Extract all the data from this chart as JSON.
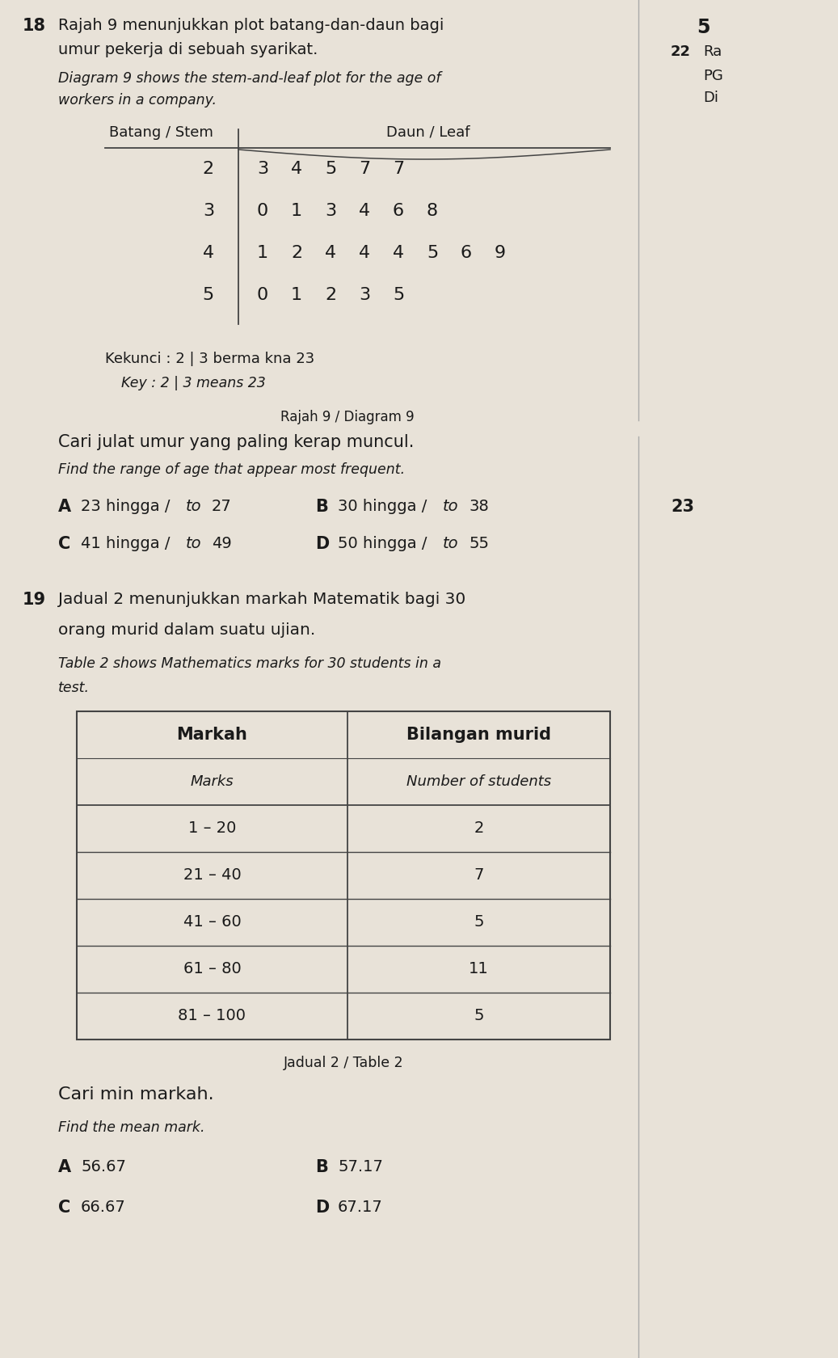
{
  "page_bg": "#e8e2d8",
  "q18_number": "18",
  "q18_malay_line1": "Rajah 9 menunjukkan plot batang-dan-daun bagi",
  "q18_malay_line2": "umur pekerja di sebuah syarikat.",
  "q18_english_line1": "Diagram 9 shows the stem-and-leaf plot for the age of",
  "q18_english_line2": "workers in a company.",
  "stem_header": "Batang / Stem",
  "leaf_header": "Daun / Leaf",
  "stem_data": [
    {
      "stem": "2",
      "leaves": [
        "3",
        "4",
        "5",
        "7",
        "7"
      ]
    },
    {
      "stem": "3",
      "leaves": [
        "0",
        "1",
        "3",
        "4",
        "6",
        "8"
      ]
    },
    {
      "stem": "4",
      "leaves": [
        "1",
        "2",
        "4",
        "4",
        "4",
        "5",
        "6",
        "9"
      ]
    },
    {
      "stem": "5",
      "leaves": [
        "0",
        "1",
        "2",
        "3",
        "5"
      ]
    }
  ],
  "key_malay": "Kekunci : 2 | 3 berma kna 23",
  "key_english": "Key : 2 | 3 means 23",
  "diagram_label": "Rajah 9 / Diagram 9",
  "q18_question_malay": "Cari julat umur yang paling kerap muncul.",
  "q18_question_english": "Find the range of age that appear most frequent.",
  "q18_optA_bold": "A",
  "q18_optA_text": "23 hingga /",
  "q18_optA_italic": "to",
  "q18_optA_end": "27",
  "q18_optB_bold": "B",
  "q18_optB_text": "30 hingga /",
  "q18_optB_italic": "to",
  "q18_optB_end": "38",
  "q18_optC_bold": "C",
  "q18_optC_text": "41 hingga /",
  "q18_optC_italic": "to",
  "q18_optC_end": "49",
  "q18_optD_bold": "D",
  "q18_optD_text": "50 hingga /",
  "q18_optD_italic": "to",
  "q18_optD_end": "55",
  "side_number": "5",
  "side_22": "22",
  "side_22_Ra": "Ra",
  "side_22_PG": "PG",
  "side_22_Di": "Di",
  "side_23": "23",
  "q19_number": "19",
  "q19_malay_line1": "Jadual 2 menunjukkan markah Matematik bagi 30",
  "q19_malay_line2": "orang murid dalam suatu ujian.",
  "q19_english_line1": "Table 2 shows Mathematics marks for 30 students in a",
  "q19_english_line2": "test.",
  "table_col1_header_malay": "Markah",
  "table_col1_header_english": "Marks",
  "table_col2_header_malay": "Bilangan murid",
  "table_col2_header_english": "Number of students",
  "table_rows": [
    {
      "marks": "1 – 20",
      "students": "2"
    },
    {
      "marks": "21 – 40",
      "students": "7"
    },
    {
      "marks": "41 – 60",
      "students": "5"
    },
    {
      "marks": "61 – 80",
      "students": "11"
    },
    {
      "marks": "81 – 100",
      "students": "5"
    }
  ],
  "table_label": "Jadual 2 / Table 2",
  "q19_question_malay": "Cari min markah.",
  "q19_question_english": "Find the mean mark.",
  "q19_optA_bold": "A",
  "q19_optA_val": "56.67",
  "q19_optB_bold": "B",
  "q19_optB_val": "57.17",
  "q19_optC_bold": "C",
  "q19_optC_val": "66.67",
  "q19_optD_bold": "D",
  "q19_optD_val": "67.17"
}
